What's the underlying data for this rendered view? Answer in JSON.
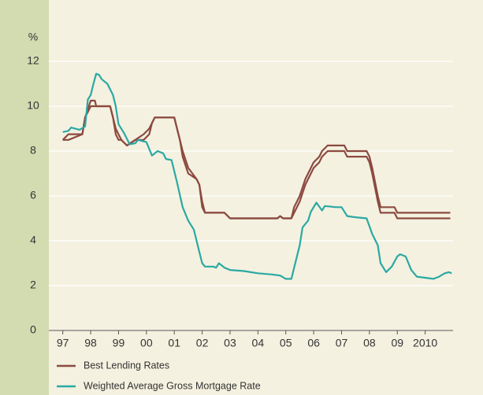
{
  "chart_data": {
    "type": "line",
    "y_unit": "%",
    "xlim": [
      1996.5,
      2011
    ],
    "ylim": [
      0,
      12
    ],
    "yticks": [
      0,
      2,
      4,
      6,
      8,
      10,
      12
    ],
    "xticks": [
      {
        "value": 1997,
        "label": "97"
      },
      {
        "value": 1998,
        "label": "98"
      },
      {
        "value": 1999,
        "label": "99"
      },
      {
        "value": 2000,
        "label": "00"
      },
      {
        "value": 2001,
        "label": "01"
      },
      {
        "value": 2002,
        "label": "02"
      },
      {
        "value": 2003,
        "label": "03"
      },
      {
        "value": 2004,
        "label": "04"
      },
      {
        "value": 2005,
        "label": "05"
      },
      {
        "value": 2006,
        "label": "06"
      },
      {
        "value": 2007,
        "label": "07"
      },
      {
        "value": 2008,
        "label": "08"
      },
      {
        "value": 2009,
        "label": "09"
      },
      {
        "value": 2010,
        "label": "2010"
      }
    ],
    "grid": true,
    "legend": "bottom-left",
    "series": [
      {
        "name": "Best Lending Rates",
        "color": "#8c4a40",
        "x": [
          1997.0,
          1997.2,
          1997.7,
          1997.8,
          1998.0,
          1998.15,
          1998.2,
          1998.7,
          1998.8,
          1998.9,
          1999.0,
          1999.1,
          1999.3,
          1999.6,
          1999.9,
          2000.1,
          2000.2,
          2000.3,
          2001.0,
          2001.1,
          2001.2,
          2001.3,
          2001.5,
          2001.8,
          2001.9,
          2002.0,
          2002.1,
          2002.8,
          2003.0,
          2004.7,
          2004.8,
          2004.9,
          2005.2,
          2005.3,
          2005.5,
          2005.7,
          2005.8,
          2006.0,
          2006.2,
          2006.3,
          2006.5,
          2007.1,
          2007.2,
          2007.9,
          2008.0,
          2008.1,
          2008.3,
          2008.4,
          2008.9,
          2009.0,
          2010.9
        ],
        "values": [
          8.5,
          8.75,
          8.75,
          9.5,
          10.25,
          10.25,
          10.0,
          10.0,
          9.5,
          9.0,
          8.75,
          8.5,
          8.25,
          8.5,
          8.75,
          9.0,
          9.25,
          9.5,
          9.5,
          9.0,
          8.5,
          8.0,
          7.25,
          6.75,
          6.5,
          5.75,
          5.25,
          5.25,
          5.0,
          5.0,
          5.1,
          5.0,
          5.0,
          5.5,
          6.0,
          6.75,
          7.0,
          7.5,
          7.75,
          8.0,
          8.25,
          8.25,
          8.0,
          8.0,
          7.75,
          7.25,
          6.0,
          5.5,
          5.5,
          5.25,
          5.25
        ]
      },
      {
        "color": "#8c4a40",
        "x": [
          1997.0,
          1997.2,
          1997.7,
          1997.8,
          1998.0,
          1998.15,
          1998.2,
          1998.7,
          1998.8,
          1998.9,
          1999.0,
          1999.1,
          1999.3,
          1999.6,
          1999.9,
          2000.1,
          2000.2,
          2000.3,
          2001.0,
          2001.1,
          2001.2,
          2001.3,
          2001.5,
          2001.8,
          2001.9,
          2002.0,
          2002.1,
          2002.8,
          2003.0,
          2004.7,
          2004.8,
          2004.9,
          2005.2,
          2005.3,
          2005.5,
          2005.7,
          2005.8,
          2006.0,
          2006.2,
          2006.3,
          2006.5,
          2007.1,
          2007.2,
          2007.9,
          2008.0,
          2008.1,
          2008.3,
          2008.4,
          2008.9,
          2009.0,
          2010.9
        ],
        "values": [
          8.5,
          8.5,
          8.75,
          9.5,
          10.0,
          10.0,
          10.0,
          10.0,
          9.5,
          8.75,
          8.5,
          8.5,
          8.25,
          8.5,
          8.5,
          8.75,
          9.25,
          9.5,
          9.5,
          9.0,
          8.5,
          7.75,
          7.0,
          6.75,
          6.5,
          5.5,
          5.25,
          5.25,
          5.0,
          5.0,
          5.1,
          5.0,
          5.0,
          5.25,
          5.75,
          6.5,
          6.75,
          7.25,
          7.5,
          7.75,
          8.0,
          8.0,
          7.75,
          7.75,
          7.5,
          7.0,
          5.75,
          5.25,
          5.25,
          5.0,
          5.0
        ]
      },
      {
        "name": "Weighted Average Gross Mortgage Rate",
        "color": "#2aa9a3",
        "x": [
          1997.0,
          1997.2,
          1997.3,
          1997.6,
          1997.8,
          1997.9,
          1998.0,
          1998.1,
          1998.2,
          1998.3,
          1998.4,
          1998.6,
          1998.8,
          1998.9,
          1999.0,
          1999.2,
          1999.4,
          1999.6,
          1999.7,
          2000.0,
          2000.2,
          2000.4,
          2000.6,
          2000.7,
          2000.9,
          2001.1,
          2001.3,
          2001.5,
          2001.7,
          2001.9,
          2002.0,
          2002.1,
          2002.4,
          2002.5,
          2002.6,
          2002.8,
          2003.0,
          2003.5,
          2004.0,
          2004.5,
          2004.8,
          2005.0,
          2005.2,
          2005.3,
          2005.5,
          2005.6,
          2005.8,
          2005.9,
          2006.1,
          2006.3,
          2006.4,
          2006.8,
          2007.0,
          2007.2,
          2007.5,
          2007.9,
          2008.1,
          2008.3,
          2008.4,
          2008.6,
          2008.8,
          2009.0,
          2009.1,
          2009.3,
          2009.5,
          2009.7,
          2010.0,
          2010.3,
          2010.5,
          2010.7,
          2010.85,
          2010.95
        ],
        "values": [
          8.85,
          8.9,
          9.05,
          8.95,
          9.1,
          10.3,
          10.5,
          11.0,
          11.45,
          11.4,
          11.2,
          11.0,
          10.5,
          10.0,
          9.2,
          8.8,
          8.3,
          8.35,
          8.5,
          8.4,
          7.8,
          8.0,
          7.9,
          7.65,
          7.6,
          6.6,
          5.5,
          4.9,
          4.5,
          3.5,
          3.0,
          2.85,
          2.85,
          2.8,
          3.0,
          2.8,
          2.7,
          2.65,
          2.55,
          2.5,
          2.45,
          2.3,
          2.3,
          2.8,
          3.8,
          4.6,
          4.9,
          5.3,
          5.7,
          5.35,
          5.55,
          5.5,
          5.5,
          5.1,
          5.05,
          5.0,
          4.3,
          3.8,
          3.0,
          2.6,
          2.85,
          3.3,
          3.4,
          3.3,
          2.7,
          2.4,
          2.35,
          2.3,
          2.4,
          2.55,
          2.6,
          2.55
        ]
      }
    ]
  }
}
